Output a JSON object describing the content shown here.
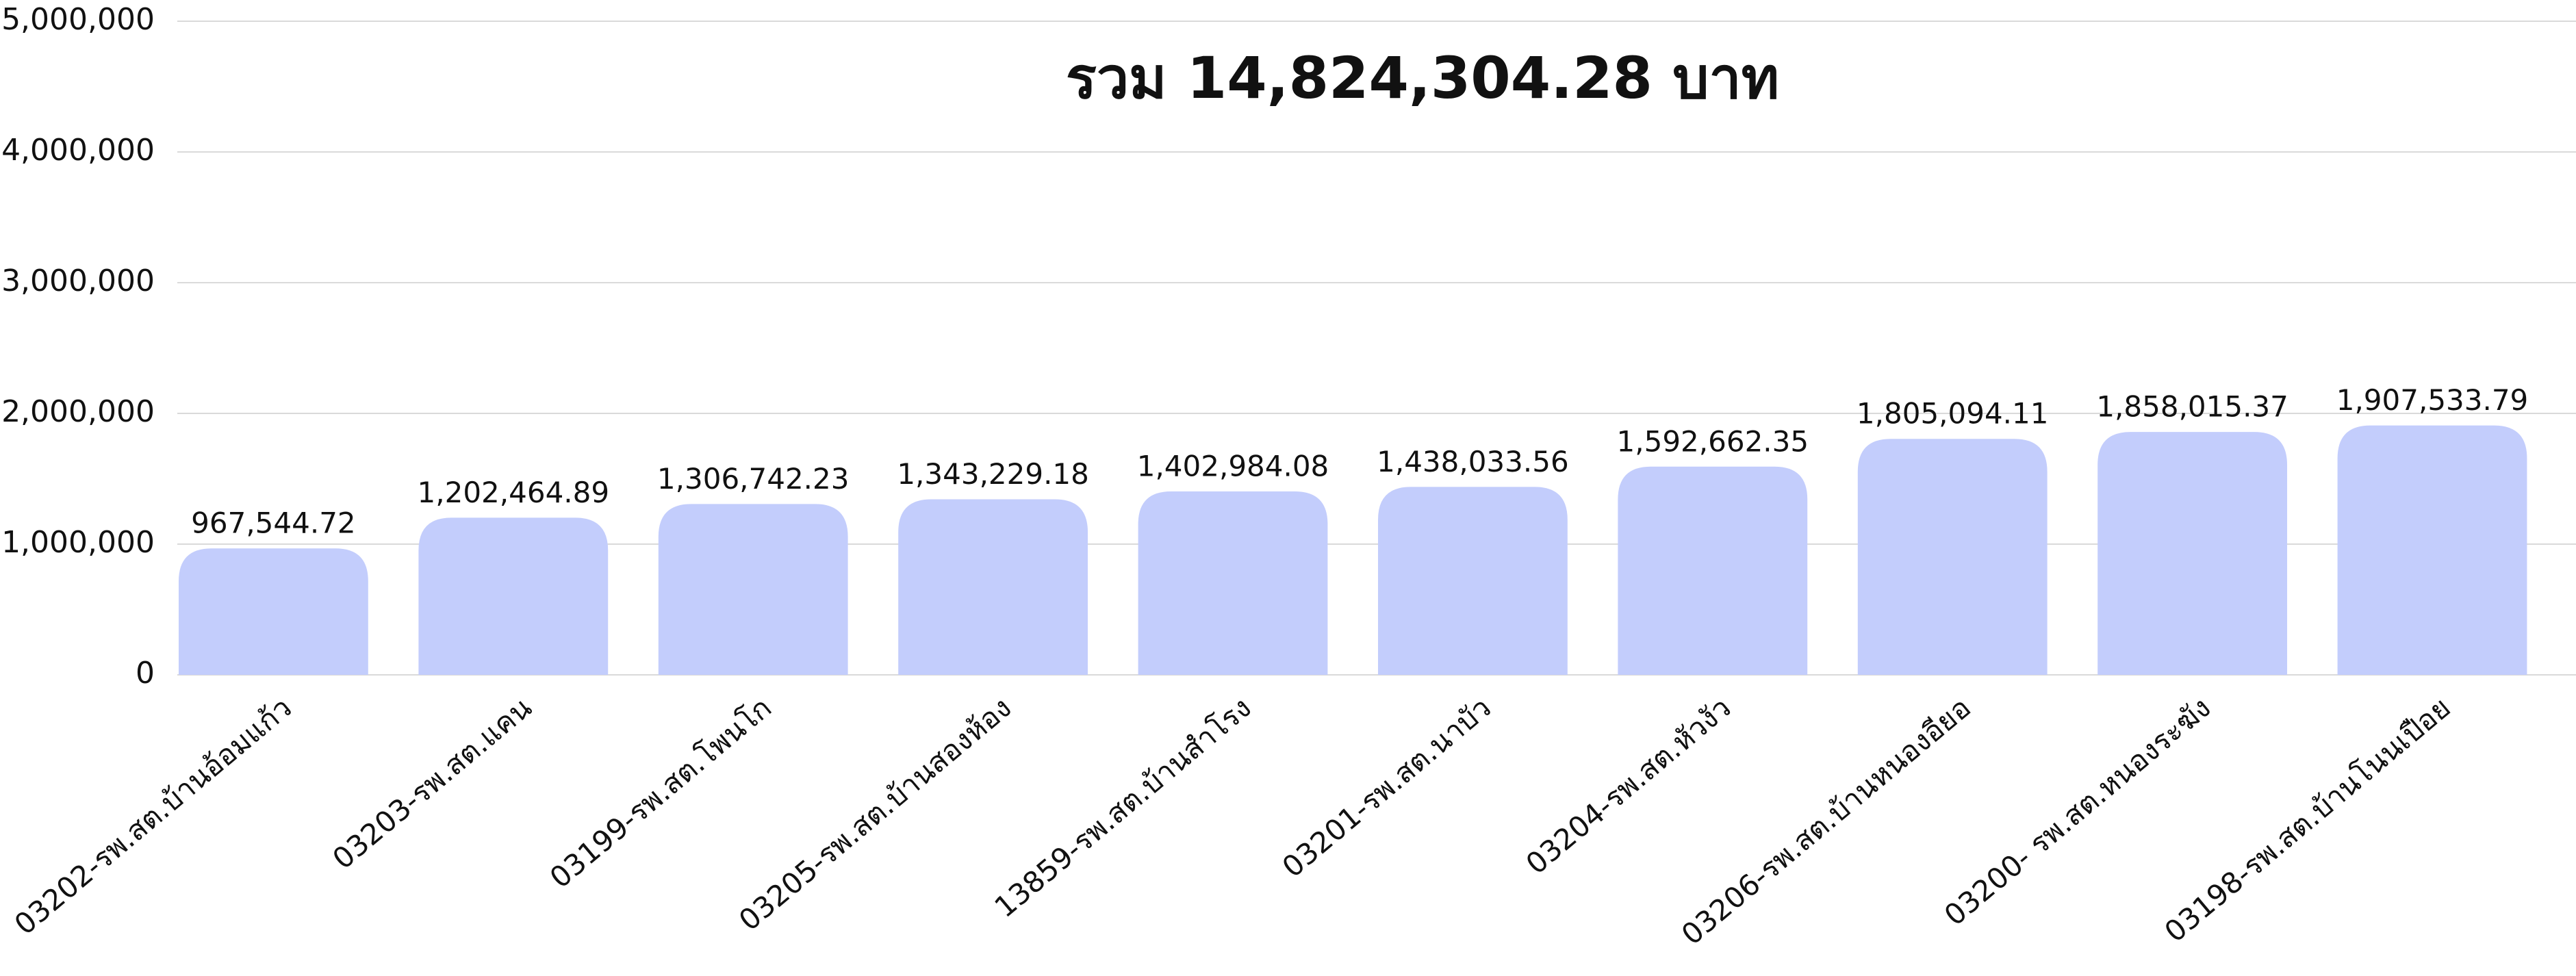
{
  "chart_data": {
    "type": "bar",
    "title": "รวม 14,824,304.28 บาท",
    "categories": [
      "03202-รพ.สต.บ้านอ้อมแก้ว",
      "03203-รพ.สต.แคน",
      "03199-รพ.สต.โพนโก",
      "03205-รพ.สต.บ้านสองห้อง",
      "13859-รพ.สต.บ้านสำโรง",
      "03201-รพ.สต.นาบัว",
      "03204-รพ.สต.หัวงัว",
      "03206-รพ.สต.บ้านหนองอียอ",
      "03200- รพ.สต.หนองระฆัง",
      "03198-รพ.สต.บ้านโนนเปือย"
    ],
    "values": [
      967544.72,
      1202464.89,
      1306742.23,
      1343229.18,
      1402984.08,
      1438033.56,
      1592662.35,
      1805094.11,
      1858015.37,
      1907533.79
    ],
    "value_labels": [
      "967,544.72",
      "1,202,464.89",
      "1,306,742.23",
      "1,343,229.18",
      "1,402,984.08",
      "1,438,033.56",
      "1,592,662.35",
      "1,805,094.11",
      "1,858,015.37",
      "1,907,533.79"
    ],
    "color": "#c3cdfc",
    "ylim": [
      0,
      5000000
    ],
    "yticks": [
      0,
      {
        "value": 1000000,
        "label": "1,000,000"
      },
      {
        "value": 2000000,
        "label": "2,000,000"
      },
      {
        "value": 3000000,
        "label": "3,000,000"
      },
      {
        "value": 4000000,
        "label": "4,000,000"
      },
      {
        "value": 5000000,
        "label": "5,000,000"
      }
    ],
    "grid": true
  }
}
